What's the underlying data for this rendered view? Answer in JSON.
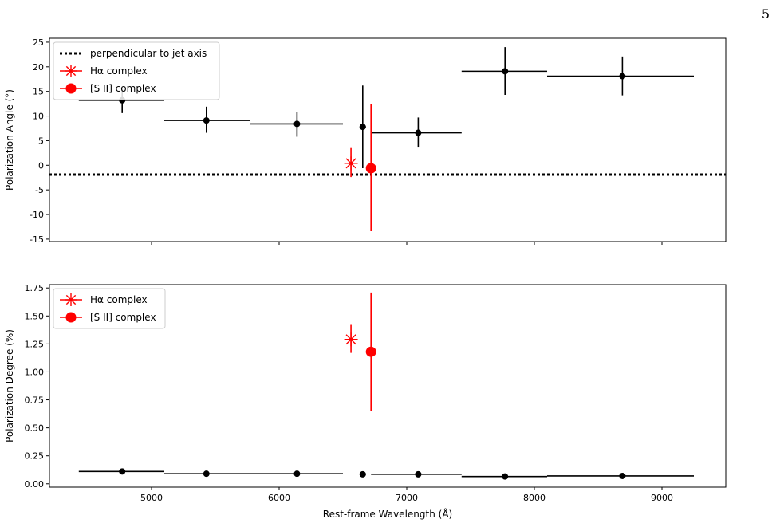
{
  "page_number": "5",
  "chart_data": [
    {
      "type": "scatter",
      "ylabel": "Polarization Angle (°)",
      "xlabel": "",
      "xlim": [
        4200,
        9500
      ],
      "ylim": [
        -15.5,
        25.8
      ],
      "yticks": [
        -15,
        -10,
        -5,
        0,
        5,
        10,
        15,
        20,
        25
      ],
      "xticks": [
        5000,
        6000,
        7000,
        8000,
        9000
      ],
      "show_xtick_labels": false,
      "reference_line": {
        "y": -1.9,
        "style": "dotted",
        "color": "#000000",
        "label": "perpendicular to jet axis"
      },
      "series": [
        {
          "name": "",
          "color": "#000000",
          "marker": "circle",
          "points": [
            {
              "x": 4770,
              "y": 13.2,
              "xlo": 4430,
              "xhi": 5100,
              "ylo": 10.6,
              "yhi": 15.6
            },
            {
              "x": 5430,
              "y": 9.1,
              "xlo": 5100,
              "xhi": 5770,
              "ylo": 6.6,
              "yhi": 11.9
            },
            {
              "x": 6140,
              "y": 8.4,
              "xlo": 5770,
              "xhi": 6500,
              "ylo": 5.8,
              "yhi": 10.9
            },
            {
              "x": 6655,
              "y": 7.8,
              "xlo": 6630,
              "xhi": 6680,
              "ylo": -0.6,
              "yhi": 16.2
            },
            {
              "x": 7090,
              "y": 6.6,
              "xlo": 6720,
              "xhi": 7430,
              "ylo": 3.6,
              "yhi": 9.7
            },
            {
              "x": 7770,
              "y": 19.1,
              "xlo": 7430,
              "xhi": 8100,
              "ylo": 14.3,
              "yhi": 24.0
            },
            {
              "x": 8690,
              "y": 18.1,
              "xlo": 8100,
              "xhi": 9250,
              "ylo": 14.2,
              "yhi": 22.1
            }
          ]
        },
        {
          "name": "Hα complex",
          "color": "#ff0000",
          "marker": "star",
          "points": [
            {
              "x": 6563,
              "y": 0.4,
              "ylo": -2.4,
              "yhi": 3.5
            }
          ]
        },
        {
          "name": "[S II] complex",
          "color": "#ff0000",
          "marker": "big-circle",
          "points": [
            {
              "x": 6720,
              "y": -0.6,
              "ylo": -13.4,
              "yhi": 12.4
            }
          ]
        }
      ],
      "legend": {
        "position": "top-left",
        "entries": [
          "perpendicular to jet axis",
          "Hα complex",
          "[S II] complex"
        ]
      }
    },
    {
      "type": "scatter",
      "ylabel": "Polarization Degree (%)",
      "xlabel": "Rest-frame Wavelength (Å)",
      "xlim": [
        4200,
        9500
      ],
      "ylim": [
        -0.03,
        1.78
      ],
      "yticks": [
        "0.00",
        "0.25",
        "0.50",
        "0.75",
        "1.00",
        "1.25",
        "1.50",
        "1.75"
      ],
      "xticks": [
        "5000",
        "6000",
        "7000",
        "8000",
        "9000"
      ],
      "show_xtick_labels": true,
      "series": [
        {
          "name": "",
          "color": "#000000",
          "marker": "circle",
          "points": [
            {
              "x": 4770,
              "y": 0.11,
              "xlo": 4430,
              "xhi": 5100
            },
            {
              "x": 5430,
              "y": 0.09,
              "xlo": 5100,
              "xhi": 5770
            },
            {
              "x": 6140,
              "y": 0.09,
              "xlo": 5770,
              "xhi": 6500
            },
            {
              "x": 6655,
              "y": 0.085,
              "xlo": 6630,
              "xhi": 6680
            },
            {
              "x": 7090,
              "y": 0.085,
              "xlo": 6720,
              "xhi": 7430
            },
            {
              "x": 7770,
              "y": 0.065,
              "xlo": 7430,
              "xhi": 8100
            },
            {
              "x": 8690,
              "y": 0.07,
              "xlo": 8100,
              "xhi": 9250
            }
          ]
        },
        {
          "name": "Hα complex",
          "color": "#ff0000",
          "marker": "star",
          "points": [
            {
              "x": 6563,
              "y": 1.29,
              "ylo": 1.17,
              "yhi": 1.42
            }
          ]
        },
        {
          "name": "[S II] complex",
          "color": "#ff0000",
          "marker": "big-circle",
          "points": [
            {
              "x": 6720,
              "y": 1.18,
              "ylo": 0.65,
              "yhi": 1.71
            }
          ]
        }
      ],
      "legend": {
        "position": "top-left",
        "entries": [
          "Hα complex",
          "[S II] complex"
        ]
      }
    }
  ]
}
